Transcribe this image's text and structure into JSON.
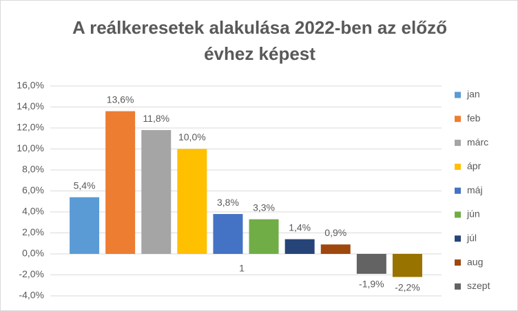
{
  "chart_data": {
    "type": "bar",
    "title": "A reálkeresetek alakulása 2022-ben az előző évhez képest",
    "categories": [
      "1"
    ],
    "series": [
      {
        "name": "jan",
        "color": "#5b9bd5",
        "values": [
          5.4
        ],
        "value_labels": [
          "5,4%"
        ]
      },
      {
        "name": "feb",
        "color": "#ed7d31",
        "values": [
          13.6
        ],
        "value_labels": [
          "13,6%"
        ]
      },
      {
        "name": "márc",
        "color": "#a5a5a5",
        "values": [
          11.8
        ],
        "value_labels": [
          "11,8%"
        ]
      },
      {
        "name": "ápr",
        "color": "#ffc000",
        "values": [
          10.0
        ],
        "value_labels": [
          "10,0%"
        ]
      },
      {
        "name": "máj",
        "color": "#4472c4",
        "values": [
          3.8
        ],
        "value_labels": [
          "3,8%"
        ]
      },
      {
        "name": "jún",
        "color": "#70ad47",
        "values": [
          3.3
        ],
        "value_labels": [
          "3,3%"
        ]
      },
      {
        "name": "júl",
        "color": "#264478",
        "values": [
          1.4
        ],
        "value_labels": [
          "1,4%"
        ]
      },
      {
        "name": "aug",
        "color": "#9e480e",
        "values": [
          0.9
        ],
        "value_labels": [
          "0,9%"
        ]
      },
      {
        "name": "szept",
        "color": "#636363",
        "values": [
          -1.9
        ],
        "value_labels": [
          "-1,9%"
        ]
      },
      {
        "name": null,
        "color": "#997300",
        "values": [
          -2.2
        ],
        "value_labels": [
          "-2,2%"
        ]
      }
    ],
    "ylim": [
      -4,
      16
    ],
    "yticks": [
      {
        "value": -4,
        "label": "-4,0%"
      },
      {
        "value": -2,
        "label": "-2,0%"
      },
      {
        "value": 0,
        "label": "0,0%"
      },
      {
        "value": 2,
        "label": "2,0%"
      },
      {
        "value": 4,
        "label": "4,0%"
      },
      {
        "value": 6,
        "label": "6,0%"
      },
      {
        "value": 8,
        "label": "8,0%"
      },
      {
        "value": 10,
        "label": "10,0%"
      },
      {
        "value": 12,
        "label": "12,0%"
      },
      {
        "value": 14,
        "label": "14,0%"
      },
      {
        "value": 16,
        "label": "16,0%"
      }
    ],
    "grid": true,
    "legend": "right"
  }
}
